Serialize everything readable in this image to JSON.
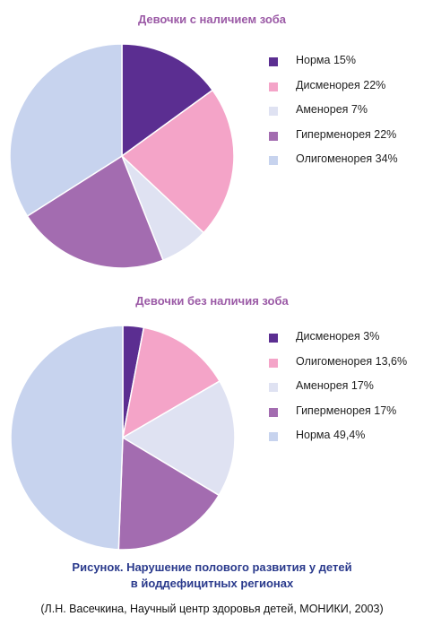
{
  "colors": {
    "dark_purple": "#5b2e91",
    "pink": "#f4a4c8",
    "pale_lavender": "#dfe2f2",
    "mauve": "#a36cb0",
    "light_blue": "#c7d3ee",
    "title": "#9b5aa6",
    "caption": "#2a3a8c"
  },
  "chart_data": [
    {
      "type": "pie",
      "title": "Девочки с наличием зоба",
      "legend_position": "right",
      "slices": [
        {
          "label": "Норма 15%",
          "value": 15,
          "color": "#5b2e91"
        },
        {
          "label": "Дисменорея 22%",
          "value": 22,
          "color": "#f4a4c8"
        },
        {
          "label": "Аменорея 7%",
          "value": 7,
          "color": "#dfe2f2"
        },
        {
          "label": "Гиперменорея 22%",
          "value": 22,
          "color": "#a36cb0"
        },
        {
          "label": "Олигоменорея 34%",
          "value": 34,
          "color": "#c7d3ee"
        }
      ]
    },
    {
      "type": "pie",
      "title": "Девочки без наличия зоба",
      "legend_position": "right",
      "slices": [
        {
          "label": "Дисменорея 3%",
          "value": 3,
          "color": "#5b2e91"
        },
        {
          "label": "Олигоменорея 13,6%",
          "value": 13.6,
          "color": "#f4a4c8"
        },
        {
          "label": "Аменорея 17%",
          "value": 17,
          "color": "#dfe2f2"
        },
        {
          "label": "Гиперменорея 17%",
          "value": 17,
          "color": "#a36cb0"
        },
        {
          "label": "Норма 49,4%",
          "value": 49.4,
          "color": "#c7d3ee"
        }
      ]
    }
  ],
  "caption": {
    "line1": "Рисунок. Нарушение полового развития у детей",
    "line2": "в йоддефицитных регионах"
  },
  "source": "(Л.Н. Васечкина, Научный центр здоровья детей, МОНИКИ, 2003)"
}
